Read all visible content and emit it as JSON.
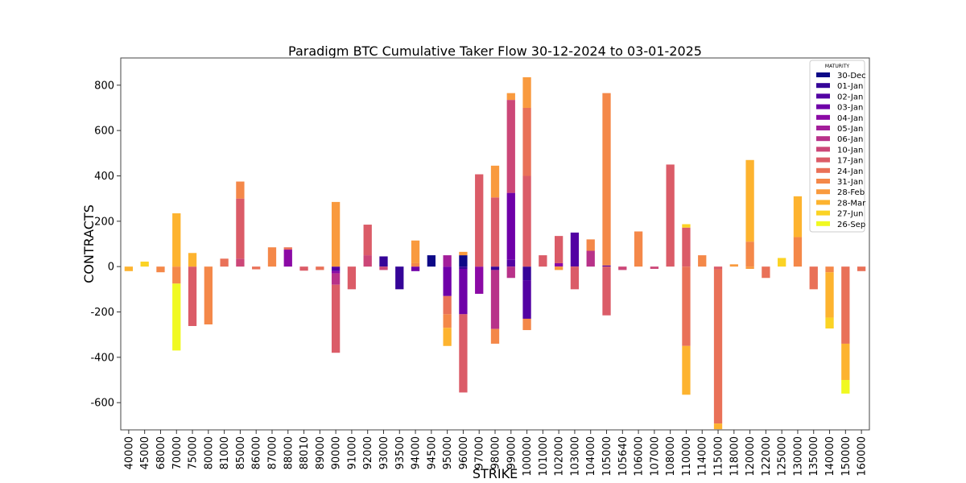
{
  "chart_data": {
    "type": "bar",
    "stacked": true,
    "title": "Paradigm BTC Cumulative Taker Flow 30-12-2024 to 03-01-2025",
    "xlabel": "STRIKE",
    "ylabel": "CONTRACTS",
    "ylim": [
      -720,
      920
    ],
    "yticks": [
      -600,
      -400,
      -200,
      0,
      200,
      400,
      600,
      800
    ],
    "legend_title": "MATURITY",
    "legend_position": "top-right",
    "categories": [
      "40000",
      "45000",
      "68000",
      "70000",
      "75000",
      "80000",
      "81000",
      "85000",
      "86000",
      "87000",
      "88000",
      "88010",
      "89000",
      "90000",
      "91000",
      "92000",
      "93000",
      "93500",
      "94000",
      "94500",
      "95000",
      "96000",
      "97000",
      "98000",
      "99000",
      "100000",
      "101000",
      "102000",
      "103000",
      "104000",
      "105000",
      "105640",
      "106000",
      "107000",
      "108000",
      "110000",
      "114000",
      "115000",
      "118000",
      "120000",
      "122000",
      "125000",
      "130000",
      "135000",
      "140000",
      "150000",
      "160000"
    ],
    "series": [
      {
        "name": "30-Dec",
        "color": "#0d0887",
        "values": [
          0,
          0,
          0,
          0,
          0,
          0,
          0,
          0,
          0,
          0,
          0,
          0,
          0,
          0,
          0,
          0,
          0,
          0,
          0,
          50,
          0,
          50,
          0,
          0,
          0,
          0,
          0,
          0,
          0,
          0,
          0,
          0,
          0,
          0,
          0,
          0,
          0,
          0,
          0,
          0,
          0,
          0,
          0,
          0,
          0,
          0,
          0
        ]
      },
      {
        "name": "01-Jan",
        "color": "#350498",
        "values": [
          0,
          0,
          0,
          0,
          0,
          0,
          0,
          0,
          0,
          0,
          0,
          0,
          0,
          0,
          0,
          0,
          45,
          -100,
          0,
          0,
          0,
          -10,
          0,
          -15,
          0,
          -60,
          0,
          0,
          0,
          0,
          0,
          0,
          0,
          0,
          0,
          0,
          0,
          0,
          0,
          0,
          0,
          0,
          0,
          0,
          0,
          0,
          0
        ]
      },
      {
        "name": "02-Jan",
        "color": "#5302a3",
        "values": [
          0,
          0,
          0,
          0,
          0,
          0,
          0,
          0,
          0,
          0,
          0,
          0,
          0,
          -20,
          0,
          0,
          0,
          0,
          0,
          0,
          0,
          0,
          0,
          0,
          30,
          -170,
          0,
          0,
          150,
          0,
          5,
          0,
          0,
          0,
          0,
          0,
          0,
          0,
          0,
          0,
          0,
          0,
          0,
          0,
          0,
          0,
          0
        ]
      },
      {
        "name": "03-Jan",
        "color": "#6f00a8",
        "values": [
          0,
          0,
          0,
          0,
          0,
          0,
          0,
          0,
          0,
          0,
          0,
          0,
          0,
          0,
          0,
          0,
          0,
          0,
          -20,
          0,
          -130,
          -200,
          0,
          0,
          295,
          0,
          0,
          0,
          0,
          0,
          0,
          0,
          0,
          0,
          0,
          0,
          0,
          0,
          0,
          0,
          0,
          0,
          0,
          0,
          0,
          0,
          0
        ]
      },
      {
        "name": "04-Jan",
        "color": "#8b0aa5",
        "values": [
          0,
          0,
          0,
          0,
          0,
          0,
          0,
          0,
          0,
          0,
          75,
          0,
          0,
          -10,
          0,
          0,
          0,
          0,
          0,
          0,
          0,
          0,
          -120,
          0,
          0,
          0,
          0,
          15,
          0,
          0,
          0,
          0,
          0,
          0,
          0,
          0,
          0,
          0,
          0,
          0,
          0,
          0,
          0,
          0,
          0,
          0,
          0
        ]
      },
      {
        "name": "05-Jan",
        "color": "#a31e9a",
        "values": [
          0,
          0,
          0,
          0,
          0,
          0,
          0,
          0,
          0,
          0,
          0,
          0,
          0,
          0,
          0,
          0,
          0,
          0,
          0,
          0,
          50,
          0,
          0,
          0,
          0,
          0,
          0,
          0,
          0,
          0,
          0,
          0,
          0,
          0,
          0,
          0,
          0,
          0,
          0,
          0,
          0,
          0,
          0,
          0,
          0,
          0,
          0
        ]
      },
      {
        "name": "06-Jan",
        "color": "#b83289",
        "values": [
          0,
          0,
          0,
          0,
          0,
          0,
          0,
          0,
          0,
          0,
          0,
          0,
          0,
          -50,
          0,
          0,
          0,
          0,
          0,
          0,
          0,
          0,
          0,
          -260,
          -50,
          0,
          0,
          0,
          0,
          70,
          0,
          0,
          0,
          0,
          0,
          0,
          0,
          0,
          0,
          0,
          0,
          0,
          0,
          0,
          0,
          0,
          0
        ]
      },
      {
        "name": "10-Jan",
        "color": "#cc4778",
        "values": [
          0,
          0,
          0,
          0,
          0,
          0,
          0,
          35,
          0,
          0,
          0,
          0,
          0,
          0,
          0,
          50,
          -15,
          0,
          0,
          0,
          0,
          0,
          0,
          0,
          410,
          0,
          0,
          0,
          0,
          0,
          0,
          -15,
          0,
          -10,
          0,
          0,
          0,
          0,
          0,
          0,
          0,
          0,
          0,
          0,
          0,
          0,
          0
        ]
      },
      {
        "name": "17-Jan",
        "color": "#db5c68",
        "values": [
          0,
          0,
          0,
          0,
          -262,
          0,
          0,
          265,
          0,
          0,
          0,
          -18,
          0,
          -300,
          -100,
          135,
          0,
          0,
          0,
          0,
          0,
          -345,
          407,
          305,
          0,
          400,
          50,
          120,
          -100,
          0,
          -215,
          0,
          0,
          0,
          450,
          172,
          0,
          -12,
          0,
          0,
          0,
          0,
          0,
          0,
          0,
          0,
          0
        ]
      },
      {
        "name": "24-Jan",
        "color": "#e97158",
        "values": [
          0,
          0,
          0,
          0,
          0,
          0,
          35,
          0,
          -12,
          0,
          10,
          0,
          -15,
          0,
          0,
          0,
          0,
          0,
          0,
          0,
          -80,
          0,
          0,
          0,
          0,
          300,
          0,
          0,
          0,
          0,
          0,
          0,
          0,
          0,
          0,
          -350,
          0,
          -680,
          0,
          0,
          -50,
          0,
          0,
          -100,
          0,
          -340,
          -20
        ]
      },
      {
        "name": "31-Jan",
        "color": "#f48849",
        "values": [
          0,
          0,
          -25,
          -75,
          0,
          -255,
          0,
          75,
          0,
          85,
          0,
          0,
          0,
          0,
          0,
          0,
          0,
          0,
          15,
          0,
          -60,
          0,
          0,
          -65,
          0,
          -50,
          0,
          0,
          0,
          50,
          760,
          0,
          155,
          0,
          0,
          0,
          50,
          0,
          0,
          110,
          0,
          0,
          130,
          0,
          -25,
          0,
          0
        ]
      },
      {
        "name": "28-Feb",
        "color": "#f99a3e",
        "values": [
          0,
          0,
          0,
          0,
          0,
          0,
          0,
          0,
          0,
          0,
          0,
          0,
          0,
          285,
          0,
          0,
          0,
          0,
          100,
          0,
          0,
          15,
          0,
          140,
          30,
          135,
          0,
          -15,
          0,
          0,
          0,
          0,
          0,
          0,
          0,
          0,
          0,
          0,
          10,
          -10,
          0,
          0,
          0,
          0,
          0,
          0,
          0
        ]
      },
      {
        "name": "28-Mar",
        "color": "#fdb32f",
        "values": [
          -20,
          0,
          0,
          235,
          60,
          0,
          0,
          0,
          0,
          0,
          0,
          0,
          0,
          0,
          0,
          0,
          0,
          0,
          0,
          0,
          -80,
          0,
          0,
          0,
          0,
          0,
          0,
          0,
          0,
          0,
          0,
          0,
          0,
          0,
          0,
          -215,
          0,
          -25,
          0,
          360,
          0,
          0,
          180,
          0,
          -200,
          -160,
          0
        ]
      },
      {
        "name": "27-Jun",
        "color": "#fbd324",
        "values": [
          0,
          22,
          0,
          0,
          0,
          0,
          0,
          0,
          0,
          0,
          0,
          0,
          0,
          0,
          0,
          0,
          0,
          0,
          0,
          0,
          0,
          0,
          0,
          0,
          0,
          0,
          0,
          0,
          0,
          0,
          0,
          0,
          0,
          0,
          0,
          15,
          0,
          0,
          0,
          0,
          0,
          38,
          0,
          0,
          -48,
          0,
          0
        ]
      },
      {
        "name": "26-Sep",
        "color": "#f0f921",
        "values": [
          0,
          0,
          0,
          -295,
          0,
          0,
          0,
          0,
          0,
          0,
          0,
          0,
          0,
          0,
          0,
          0,
          0,
          0,
          0,
          0,
          0,
          0,
          0,
          0,
          0,
          0,
          0,
          0,
          0,
          0,
          0,
          0,
          0,
          0,
          0,
          0,
          0,
          0,
          0,
          0,
          0,
          0,
          0,
          0,
          0,
          -60,
          0
        ]
      }
    ]
  }
}
